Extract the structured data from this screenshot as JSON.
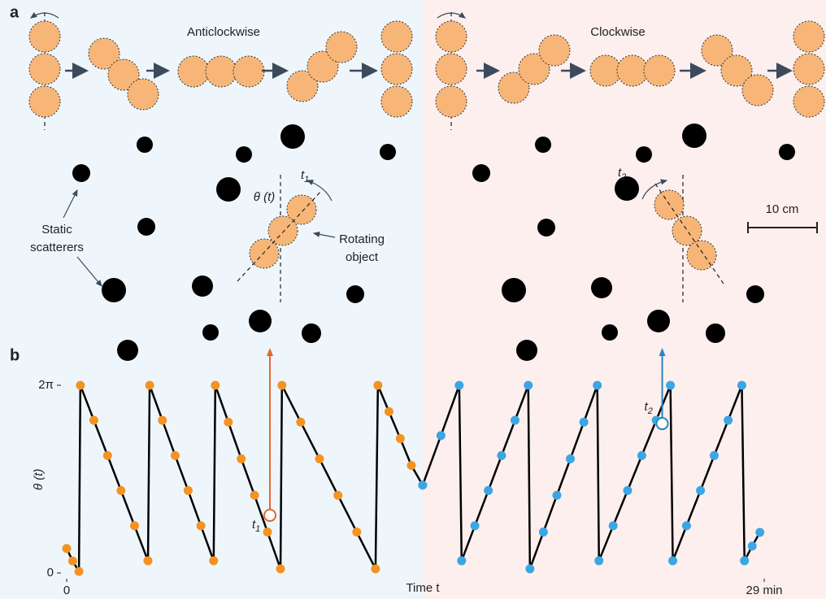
{
  "panel_a": {
    "label": "a",
    "left_title": "Anticlockwise",
    "right_title": "Clockwise",
    "scatterers_label": [
      "Static",
      "scatterers"
    ],
    "object_label": [
      "Rotating",
      "object"
    ],
    "angle_label": "θ (t)",
    "left_time": {
      "symbol": "t",
      "subscript": "1"
    },
    "right_time": {
      "symbol": "t",
      "subscript": "2"
    },
    "scale_bar": "10 cm"
  },
  "chart_data": {
    "type": "line",
    "panel_label": "b",
    "x_label": "Time t",
    "y_label": "θ (t)",
    "xlim": [
      0,
      29
    ],
    "ylim": [
      0,
      6.283
    ],
    "xticks": [
      {
        "value": 0,
        "label": "0"
      },
      {
        "value": 29,
        "label": "29 min"
      }
    ],
    "yticks": [
      {
        "value": 0,
        "label": "0"
      },
      {
        "value": 6.283,
        "label": "2π"
      }
    ],
    "line_color": "#000000",
    "series": [
      {
        "color": "#f39322",
        "x": [
          0,
          0.25,
          0.51,
          0.57,
          1.13,
          1.7,
          2.26,
          2.82,
          3.38,
          3.45,
          3.98,
          4.51,
          5.05,
          5.58,
          6.11,
          6.18,
          6.72,
          7.26,
          7.81,
          8.35,
          8.89,
          8.95,
          9.73,
          10.51,
          11.28,
          12.06,
          12.84,
          12.94,
          13.4,
          13.87,
          14.33,
          14.8
        ],
        "values": [
          0.82,
          0.4,
          0.05,
          6.28,
          5.11,
          3.93,
          2.76,
          1.58,
          0.41,
          6.28,
          5.11,
          3.93,
          2.76,
          1.58,
          0.41,
          6.28,
          5.05,
          3.82,
          2.6,
          1.37,
          0.14,
          6.28,
          5.05,
          3.82,
          2.6,
          1.37,
          0.14,
          6.28,
          5.4,
          4.5,
          3.6,
          2.94
        ]
      },
      {
        "color": "#3ba6e3",
        "x": [
          14.8,
          15.56,
          16.32,
          16.42,
          16.97,
          17.53,
          18.08,
          18.64,
          19.19,
          19.26,
          19.82,
          20.38,
          20.94,
          21.5,
          22.06,
          22.13,
          22.72,
          23.32,
          23.91,
          24.51,
          25.1,
          25.2,
          25.77,
          26.35,
          26.92,
          27.5,
          28.07,
          28.18,
          28.5,
          28.82
        ],
        "values": [
          2.94,
          4.6,
          6.28,
          0.41,
          1.58,
          2.76,
          3.93,
          5.11,
          6.28,
          0.14,
          1.37,
          2.6,
          3.82,
          5.05,
          6.28,
          0.41,
          1.58,
          2.76,
          3.93,
          5.11,
          6.28,
          0.41,
          1.58,
          2.76,
          3.93,
          5.11,
          6.28,
          0.41,
          0.9,
          1.36
        ]
      }
    ],
    "annotations": [
      {
        "symbol": "t",
        "subscript": "1",
        "x": 8.45,
        "y": 1.93,
        "color": "#e2682e"
      },
      {
        "symbol": "t",
        "subscript": "2",
        "x": 24.76,
        "y": 5.0,
        "color": "#2a86c0"
      }
    ]
  }
}
